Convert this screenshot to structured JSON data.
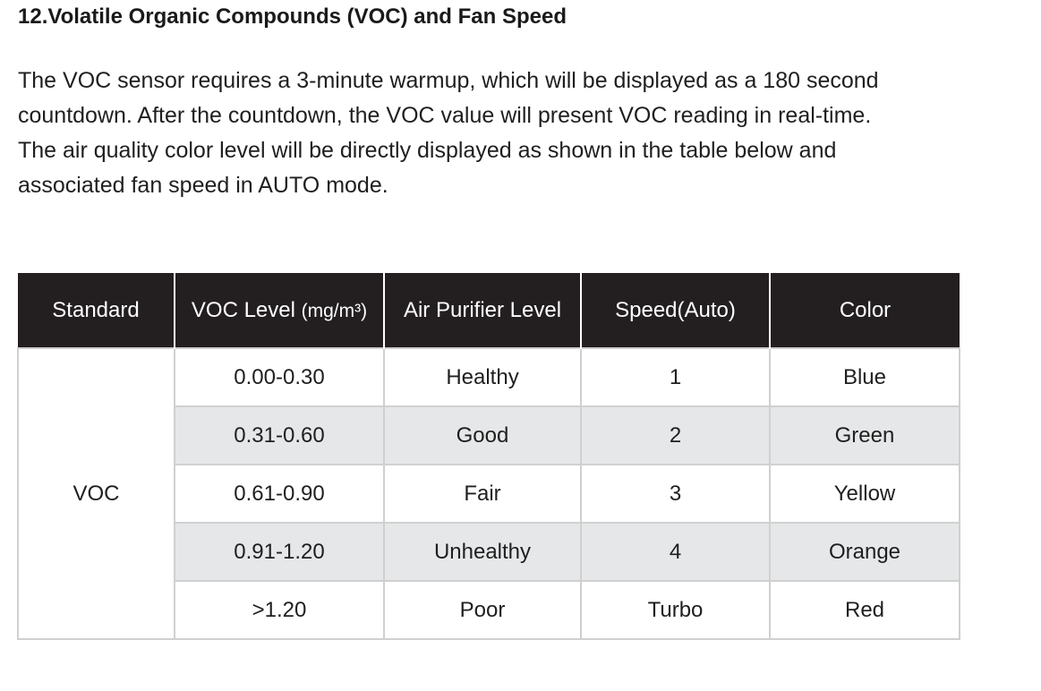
{
  "section": {
    "heading": "12.Volatile Organic Compounds (VOC) and Fan Speed",
    "intro_lines": [
      "The VOC sensor requires a 3-minute warmup, which will be displayed as a 180 second",
      "countdown. After the countdown, the VOC value will present VOC reading in real-time.",
      "The air quality color level will be directly displayed as shown in the table below and",
      "associated fan speed in AUTO mode."
    ]
  },
  "table": {
    "headers": {
      "standard": "Standard",
      "voc_level": "VOC Level",
      "voc_unit": "(mg/m³)",
      "air_purifier_level": "Air Purifier Level",
      "speed": "Speed(Auto)",
      "color": "Color"
    },
    "standard": "VOC",
    "rows": [
      {
        "range": "0.00-0.30",
        "level": "Healthy",
        "speed": "1",
        "color": "Blue"
      },
      {
        "range": "0.31-0.60",
        "level": "Good",
        "speed": "2",
        "color": "Green"
      },
      {
        "range": "0.61-0.90",
        "level": "Fair",
        "speed": "3",
        "color": "Yellow"
      },
      {
        "range": "0.91-1.20",
        "level": "Unhealthy",
        "speed": "4",
        "color": "Orange"
      },
      {
        "range": ">1.20",
        "level": "Poor",
        "speed": "Turbo",
        "color": "Red"
      }
    ],
    "colors": {
      "header_bg": "#231f20",
      "shaded_row_bg": "#e6e7e8",
      "border": "#d0d0d0"
    }
  }
}
